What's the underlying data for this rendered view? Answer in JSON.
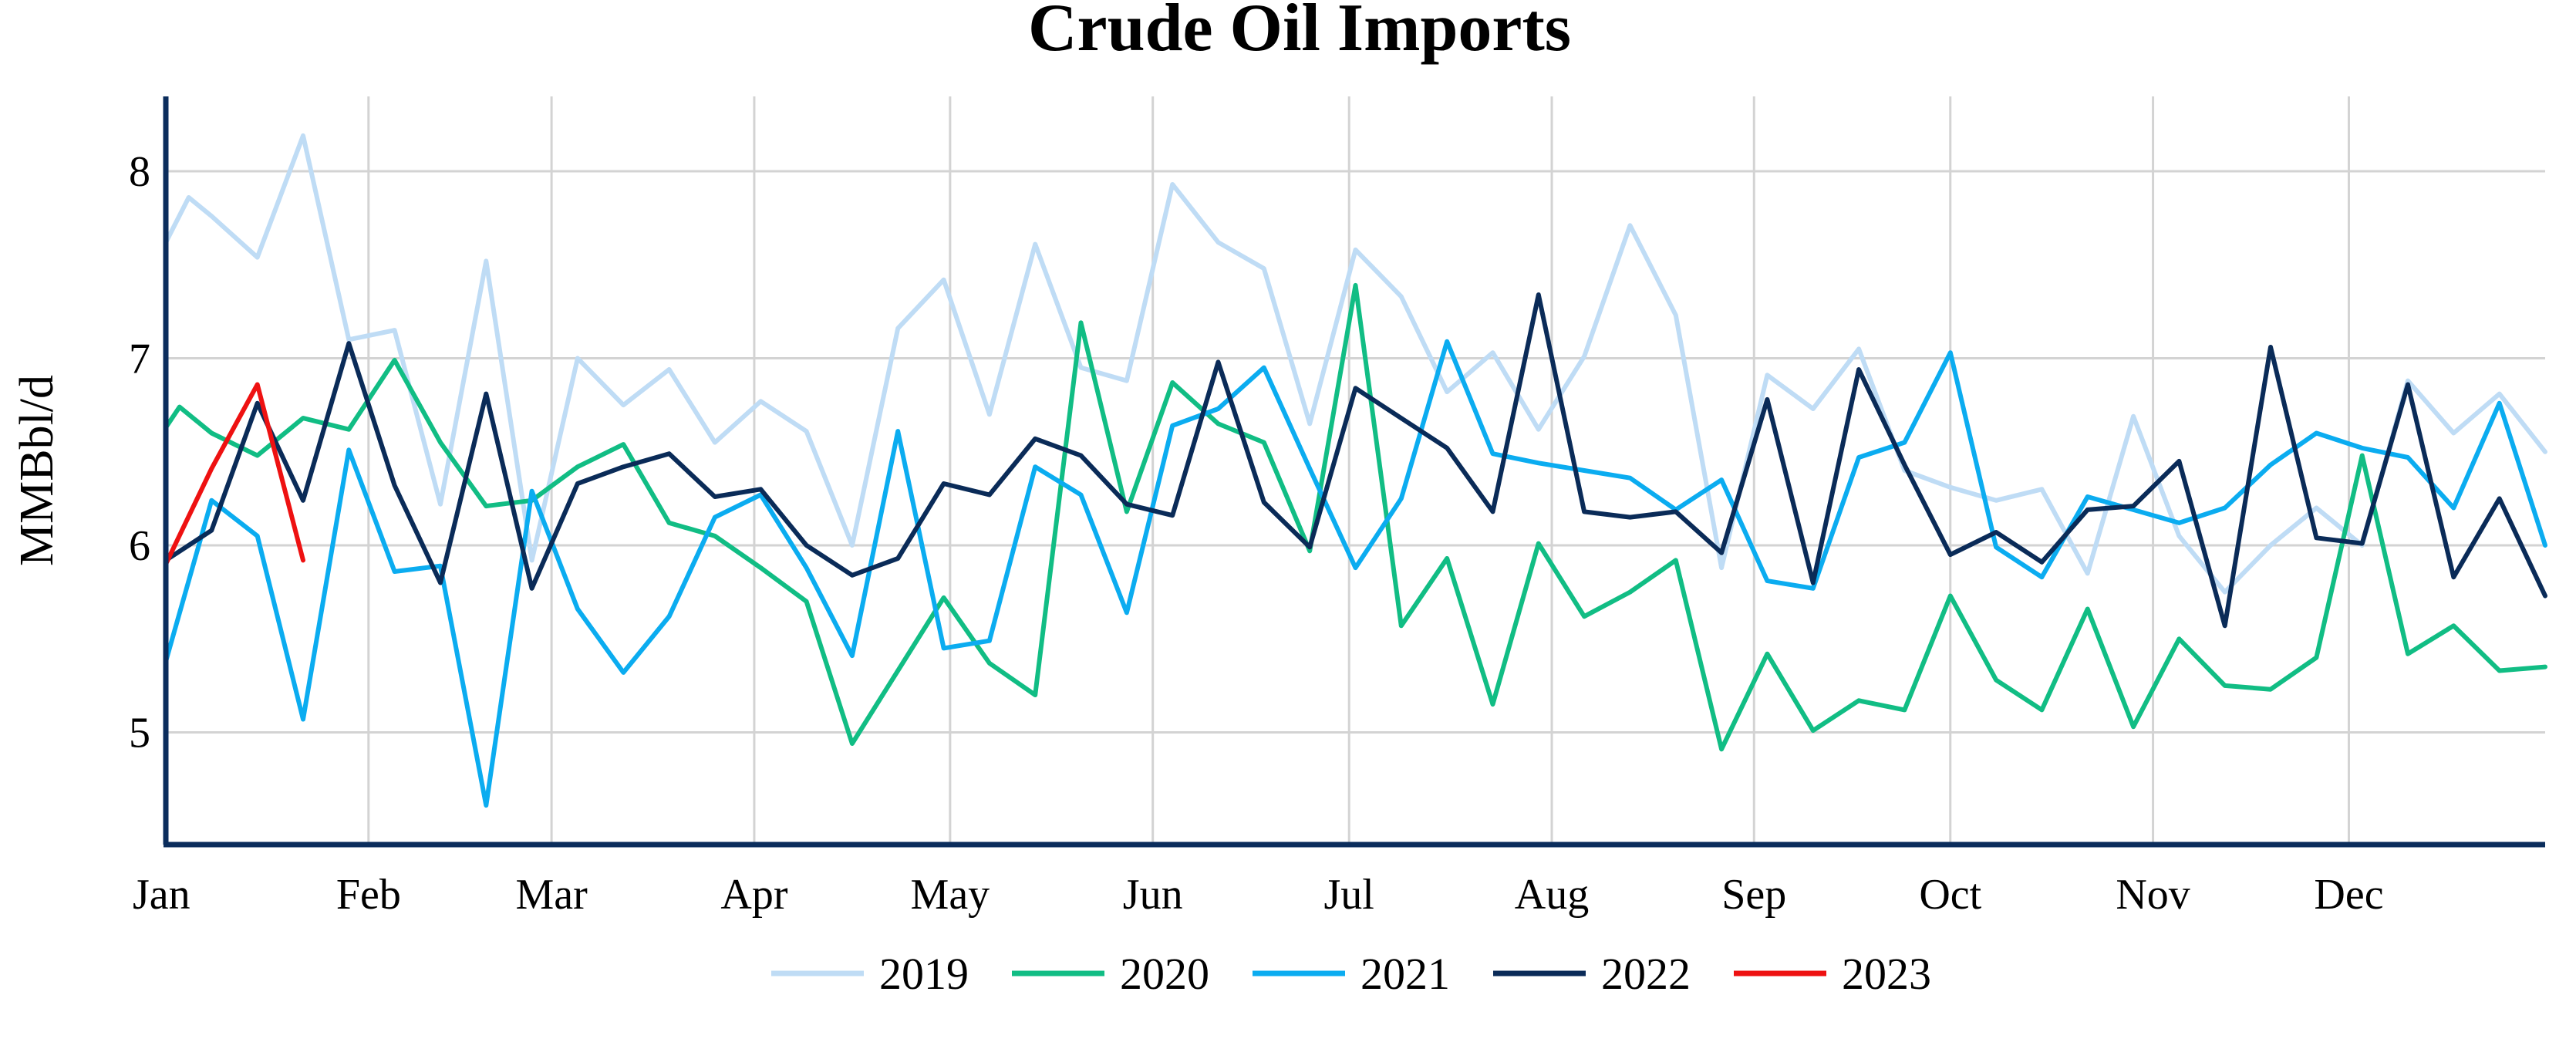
{
  "chart_data": {
    "type": "line",
    "title": "Crude Oil Imports",
    "xlabel": "",
    "ylabel": "MMBbl/d",
    "ylim": [
      4.4,
      8.4
    ],
    "yticks": [
      5,
      6,
      7,
      8
    ],
    "xlim": [
      1,
      53
    ],
    "x_tick_labels": [
      "Jan",
      "Feb",
      "Mar",
      "Apr",
      "May",
      "Jun",
      "Jul",
      "Aug",
      "Sep",
      "Oct",
      "Nov",
      "Dec"
    ],
    "x_tick_weeks": [
      1,
      5.43,
      9.43,
      13.86,
      18.14,
      22.57,
      26.86,
      31.29,
      35.71,
      40,
      44.43,
      48.71
    ],
    "grid": true,
    "legend_position": "bottom",
    "series": [
      {
        "name": "2019",
        "color": "#bfdcf5",
        "x": [
          1,
          1.5,
          2,
          3,
          4,
          5,
          6,
          7,
          8,
          9,
          10,
          11,
          12,
          13,
          14,
          15,
          16,
          17,
          18,
          19,
          20,
          21,
          22,
          23,
          24,
          25,
          26,
          27,
          28,
          29,
          30,
          31,
          32,
          33,
          34,
          35,
          36,
          37,
          38,
          39,
          40,
          41,
          42,
          43,
          44,
          45,
          46,
          47,
          48,
          49,
          50,
          51,
          52,
          53
        ],
        "values": [
          7.62,
          7.86,
          7.76,
          7.54,
          8.19,
          7.1,
          7.15,
          6.22,
          7.52,
          5.92,
          7.0,
          6.75,
          6.94,
          6.55,
          6.77,
          6.61,
          6.0,
          7.16,
          7.42,
          6.7,
          7.61,
          6.95,
          6.88,
          7.93,
          7.62,
          7.48,
          6.65,
          7.58,
          7.33,
          6.82,
          7.03,
          6.62,
          7.01,
          7.71,
          7.23,
          5.88,
          6.91,
          6.73,
          7.05,
          6.4,
          6.31,
          6.24,
          6.3,
          5.85,
          6.69,
          6.05,
          5.75,
          6.0,
          6.2,
          6.0,
          6.88,
          6.6,
          6.81,
          6.5
        ]
      },
      {
        "name": "2020",
        "color": "#11bd84",
        "x": [
          1,
          1.3,
          2,
          3,
          4,
          5,
          6,
          7,
          8,
          9,
          10,
          11,
          12,
          13,
          14,
          15,
          16,
          17,
          18,
          19,
          20,
          21,
          22,
          23,
          24,
          25,
          26,
          27,
          28,
          29,
          30,
          31,
          32,
          33,
          34,
          35,
          36,
          37,
          38,
          39,
          40,
          41,
          42,
          43,
          44,
          45,
          46,
          47,
          48,
          49,
          50,
          51,
          52,
          53
        ],
        "values": [
          6.63,
          6.74,
          6.6,
          6.48,
          6.68,
          6.62,
          6.99,
          6.55,
          6.21,
          6.24,
          6.42,
          6.54,
          6.12,
          6.05,
          5.88,
          5.7,
          4.94,
          5.33,
          5.72,
          5.37,
          5.2,
          7.19,
          6.18,
          6.87,
          6.65,
          6.55,
          5.97,
          7.39,
          5.57,
          5.93,
          5.15,
          6.01,
          5.62,
          5.75,
          5.92,
          4.91,
          5.42,
          5.01,
          5.17,
          5.12,
          5.73,
          5.28,
          5.12,
          5.66,
          5.03,
          5.5,
          5.25,
          5.23,
          5.4,
          6.48,
          5.42,
          5.57,
          5.33,
          5.35
        ]
      },
      {
        "name": "2021",
        "color": "#0bacf0",
        "x": [
          1,
          2,
          3,
          4,
          5,
          6,
          7,
          8,
          9,
          10,
          11,
          12,
          13,
          14,
          15,
          16,
          17,
          18,
          19,
          20,
          21,
          22,
          23,
          24,
          25,
          26,
          27,
          28,
          29,
          30,
          31,
          32,
          33,
          34,
          35,
          36,
          37,
          38,
          39,
          40,
          41,
          42,
          43,
          44,
          45,
          46,
          47,
          48,
          49,
          50,
          51,
          52,
          53
        ],
        "values": [
          5.38,
          6.24,
          6.05,
          5.07,
          6.51,
          5.86,
          5.89,
          4.61,
          6.29,
          5.66,
          5.32,
          5.62,
          6.15,
          6.27,
          5.88,
          5.41,
          6.61,
          5.45,
          5.49,
          6.42,
          6.27,
          5.64,
          6.64,
          6.73,
          6.95,
          6.41,
          5.88,
          6.25,
          7.09,
          6.49,
          6.44,
          6.4,
          6.36,
          6.19,
          6.35,
          5.81,
          5.77,
          6.47,
          6.55,
          7.03,
          5.99,
          5.83,
          6.26,
          6.19,
          6.12,
          6.2,
          6.43,
          6.6,
          6.52,
          6.47,
          6.2,
          6.76,
          6.0
        ]
      },
      {
        "name": "2022",
        "color": "#0a2b58",
        "x": [
          1,
          2,
          3,
          4,
          5,
          6,
          7,
          8,
          9,
          10,
          11,
          12,
          13,
          14,
          15,
          16,
          17,
          18,
          19,
          20,
          21,
          22,
          23,
          24,
          25,
          26,
          27,
          28,
          29,
          30,
          31,
          32,
          33,
          34,
          35,
          36,
          37,
          38,
          39,
          40,
          41,
          42,
          43,
          44,
          45,
          46,
          47,
          48,
          49,
          50,
          51,
          52,
          53
        ],
        "values": [
          5.92,
          6.08,
          6.76,
          6.24,
          7.08,
          6.32,
          5.8,
          6.81,
          5.77,
          6.33,
          6.42,
          6.49,
          6.26,
          6.3,
          6.0,
          5.84,
          5.93,
          6.33,
          6.27,
          6.57,
          6.48,
          6.22,
          6.16,
          6.98,
          6.23,
          5.99,
          6.84,
          6.68,
          6.52,
          6.18,
          7.34,
          6.18,
          6.15,
          6.18,
          5.96,
          6.78,
          5.8,
          6.94,
          6.43,
          5.95,
          6.07,
          5.91,
          6.19,
          6.21,
          6.45,
          5.57,
          7.06,
          6.04,
          6.01,
          6.86,
          5.83,
          6.25,
          5.73
        ]
      },
      {
        "name": "2023",
        "color": "#ee1111",
        "x": [
          1,
          2,
          3,
          4
        ],
        "values": [
          5.9,
          6.41,
          6.86,
          5.92
        ]
      }
    ]
  }
}
